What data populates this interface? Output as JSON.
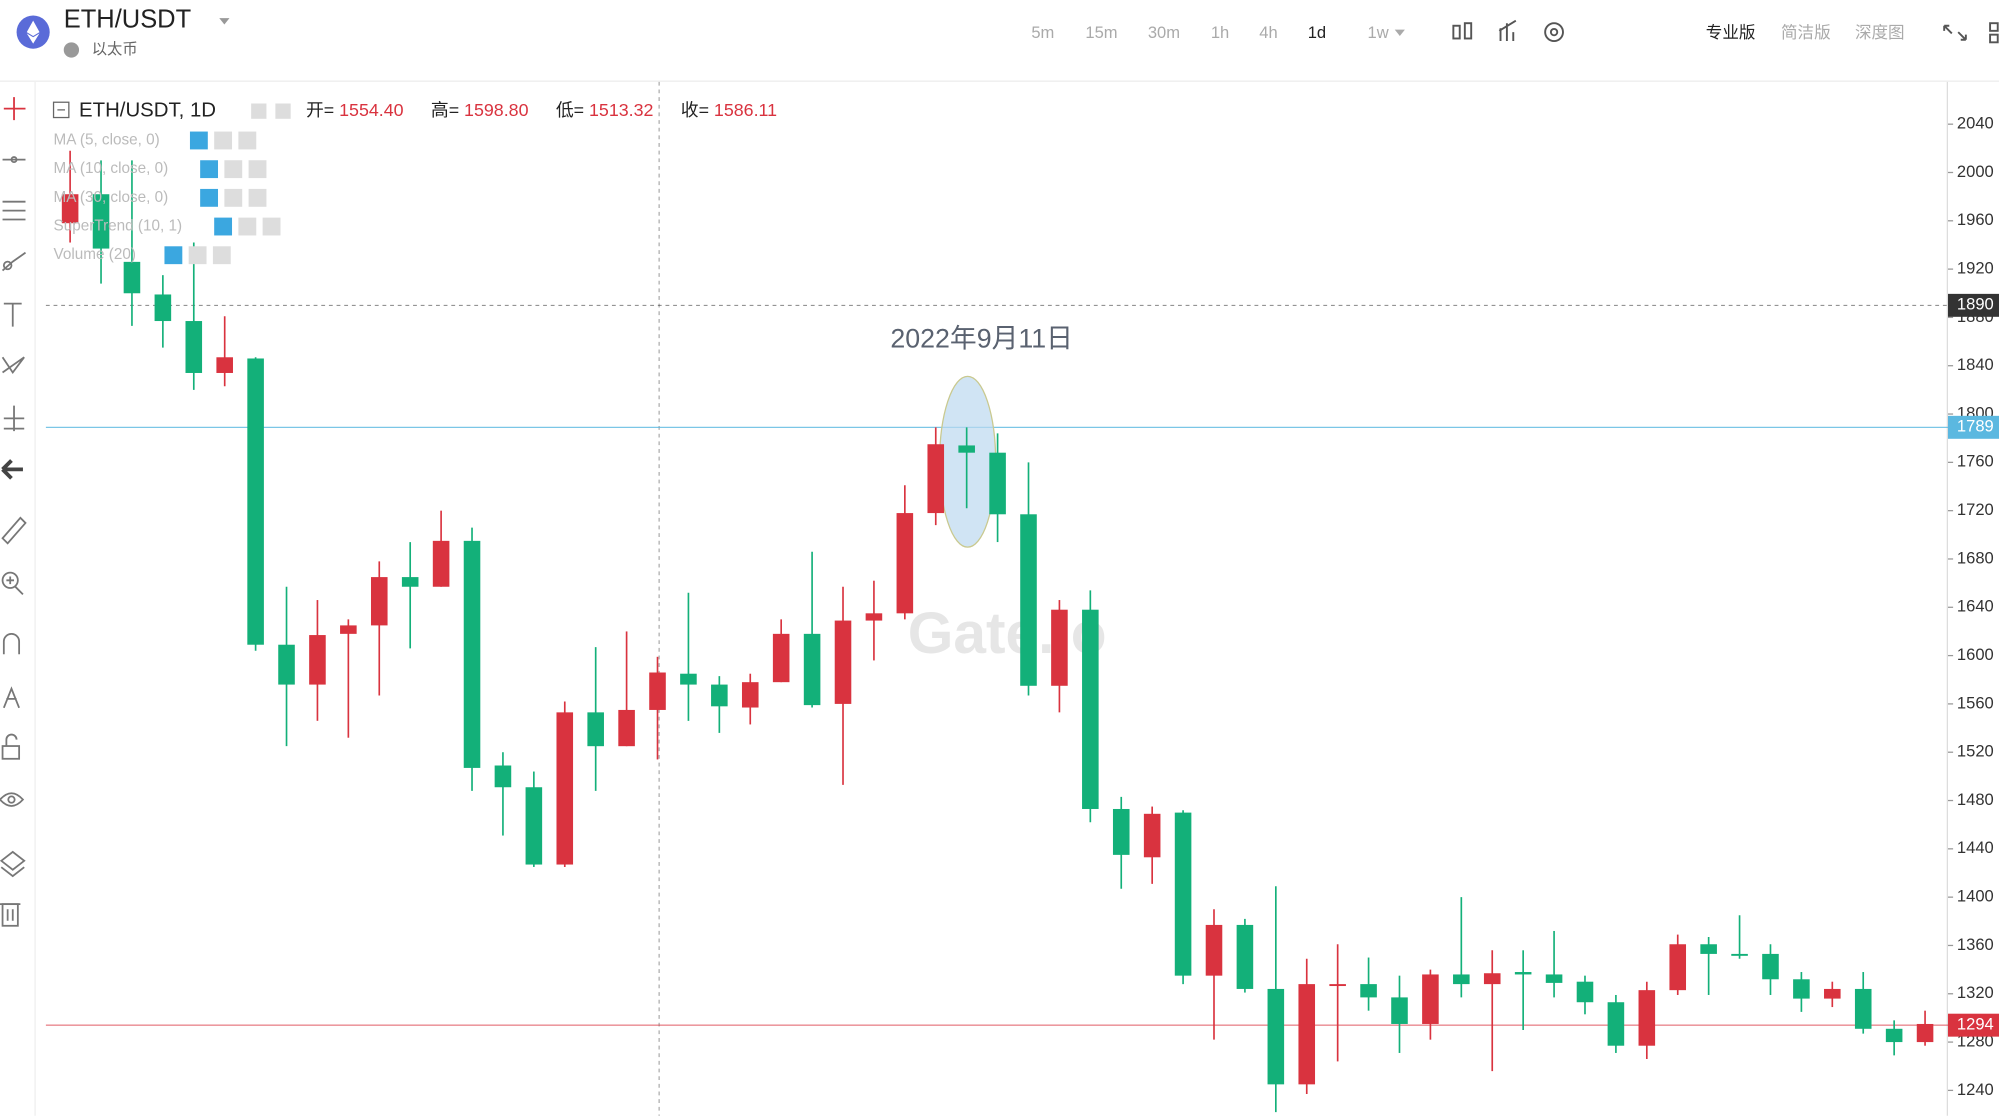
{
  "header": {
    "symbol": "ETH/USDT",
    "subtitle": "以太币",
    "intervals": [
      "5m",
      "15m",
      "30m",
      "1h",
      "4h",
      "1d",
      "1w"
    ],
    "views": [
      "专业版",
      "简洁版",
      "深度图"
    ]
  },
  "legend": {
    "title": "ETH/USDT, 1D",
    "items": [
      {
        "label": "开=",
        "value": "1554.40"
      },
      {
        "label": "高=",
        "value": "1598.80"
      },
      {
        "label": "低=",
        "value": "1513.32"
      },
      {
        "label": "收=",
        "value": "1586.11"
      }
    ],
    "indicators": [
      "MA (5, close, 0)",
      "MA (10, close, 0)",
      "MA (30, close, 0)",
      "SuperTrend (10, 1)",
      "Volume (20)"
    ]
  },
  "watermark": "Gate.io",
  "chart_data": {
    "type": "candlestick",
    "annotation": "2022年9月11日",
    "up_color": "#13b079",
    "down_color": "#d9333f",
    "open": [
      1982,
      1937,
      1900,
      1877,
      1834,
      1847,
      1609,
      1576,
      1617,
      1625,
      1665,
      1657,
      1695,
      1507,
      1491,
      1427,
      1553,
      1525,
      1555,
      1586,
      1576,
      1558,
      1578,
      1618,
      1559,
      1629,
      1635,
      1718,
      1775,
      1768,
      1717,
      1575,
      1638,
      1473,
      1435,
      1469,
      1335,
      1377,
      1324,
      1245,
      1328,
      1328,
      1317,
      1295,
      1336,
      1328,
      1337,
      1336,
      1329,
      1313,
      1277,
      1323,
      1361,
      1353,
      1352,
      1332,
      1316,
      1324,
      1291,
      1280,
      1295
    ],
    "high": [
      2018,
      2010,
      2010,
      1915,
      1942,
      1881,
      1847,
      1657,
      1646,
      1630,
      1678,
      1694,
      1720,
      1706,
      1520,
      1504,
      1562,
      1607,
      1620,
      1599,
      1652,
      1583,
      1585,
      1630,
      1686,
      1657,
      1662,
      1741,
      1789,
      1789,
      1784,
      1760,
      1646,
      1654,
      1483,
      1475,
      1472,
      1390,
      1382,
      1409,
      1349,
      1361,
      1350,
      1335,
      1340,
      1400,
      1356,
      1356,
      1372,
      1335,
      1319,
      1330,
      1369,
      1367,
      1385,
      1361,
      1338,
      1330,
      1338,
      1298,
      1306
    ],
    "low": [
      1942,
      1908,
      1873,
      1855,
      1820,
      1823,
      1604,
      1525,
      1546,
      1532,
      1567,
      1606,
      1657,
      1488,
      1451,
      1425,
      1425,
      1488,
      1525,
      1514,
      1546,
      1536,
      1543,
      1578,
      1557,
      1493,
      1596,
      1630,
      1708,
      1722,
      1694,
      1567,
      1553,
      1462,
      1407,
      1411,
      1328,
      1282,
      1321,
      1222,
      1237,
      1264,
      1306,
      1271,
      1282,
      1317,
      1256,
      1290,
      1317,
      1303,
      1271,
      1266,
      1319,
      1319,
      1349,
      1319,
      1305,
      1309,
      1287,
      1269,
      1277
    ],
    "close": [
      1958,
      1982,
      1926,
      1899,
      1877,
      1834,
      1846,
      1609,
      1576,
      1618,
      1625,
      1665,
      1657,
      1695,
      1509,
      1491,
      1427,
      1553,
      1525,
      1555,
      1585,
      1576,
      1557,
      1578,
      1618,
      1560,
      1629,
      1635,
      1718,
      1774,
      1768,
      1717,
      1575,
      1638,
      1473,
      1433,
      1470,
      1335,
      1377,
      1324,
      1245,
      1327,
      1328,
      1317,
      1295,
      1336,
      1328,
      1338,
      1336,
      1330,
      1313,
      1277,
      1323,
      1361,
      1353,
      1353,
      1332,
      1316,
      1324,
      1291,
      1280
    ],
    "price_lines": [
      {
        "value": 1890,
        "color": "#333"
      },
      {
        "value": 1789,
        "color": "#5bb8e0"
      },
      {
        "value": 1294,
        "color": "#d9333f"
      }
    ],
    "ylim": [
      1219,
      2074
    ],
    "yticks": [
      1240,
      1280,
      1320,
      1360,
      1400,
      1440,
      1480,
      1520,
      1560,
      1600,
      1640,
      1680,
      1720,
      1760,
      1800,
      1840,
      1880,
      1920,
      1960,
      2000,
      2040
    ],
    "grid": false
  }
}
